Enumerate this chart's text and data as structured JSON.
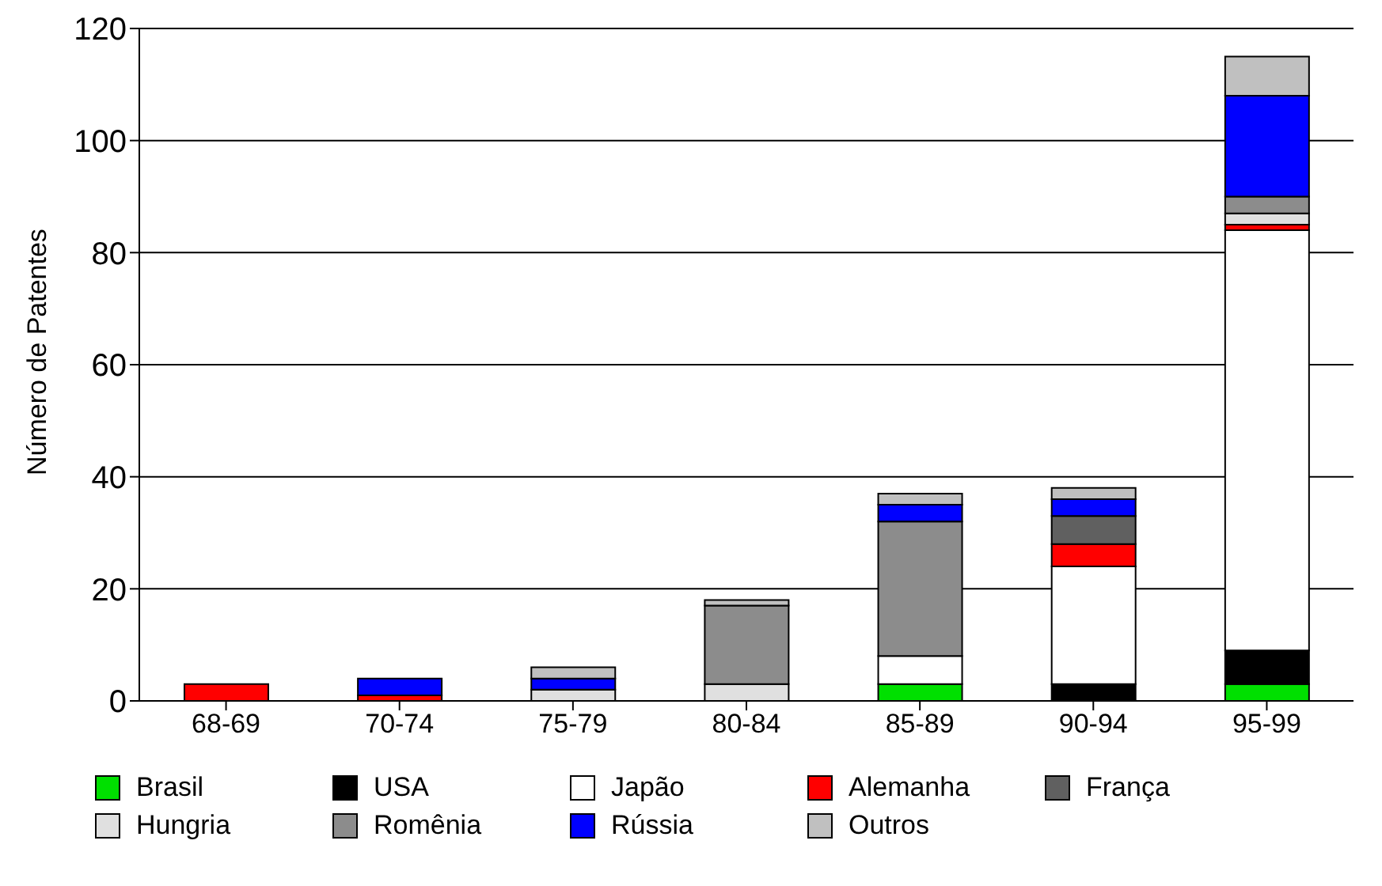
{
  "chart_data": {
    "type": "bar",
    "stacked": true,
    "ylabel": "Número de Patentes",
    "categories": [
      "68-69",
      "70-74",
      "75-79",
      "80-84",
      "85-89",
      "90-94",
      "95-99"
    ],
    "ylim": [
      0,
      120
    ],
    "yticks": [
      0,
      20,
      40,
      60,
      80,
      100,
      120
    ],
    "grid": "y",
    "legend": "bottom",
    "series": [
      {
        "name": "Brasil",
        "color": "#00e000",
        "values": [
          0,
          0,
          0,
          0,
          3,
          0,
          3
        ]
      },
      {
        "name": "USA",
        "color": "#000000",
        "values": [
          0,
          0,
          0,
          0,
          0,
          3,
          6
        ]
      },
      {
        "name": "Japão",
        "color": "#ffffff",
        "values": [
          0,
          0,
          0,
          0,
          5,
          21,
          75
        ]
      },
      {
        "name": "Alemanha",
        "color": "#ff0000",
        "values": [
          3,
          1,
          0,
          0,
          0,
          4,
          1
        ]
      },
      {
        "name": "França",
        "color": "#606060",
        "values": [
          0,
          0,
          0,
          0,
          0,
          5,
          0
        ]
      },
      {
        "name": "Hungria",
        "color": "#e0e0e0",
        "values": [
          0,
          0,
          2,
          3,
          0,
          0,
          2
        ]
      },
      {
        "name": "Romênia",
        "color": "#8c8c8c",
        "values": [
          0,
          0,
          0,
          14,
          24,
          0,
          3
        ]
      },
      {
        "name": "Rússia",
        "color": "#0000ff",
        "values": [
          0,
          3,
          2,
          0,
          3,
          3,
          18
        ]
      },
      {
        "name": "Outros",
        "color": "#c0c0c0",
        "values": [
          0,
          0,
          2,
          1,
          2,
          2,
          7
        ]
      }
    ]
  }
}
